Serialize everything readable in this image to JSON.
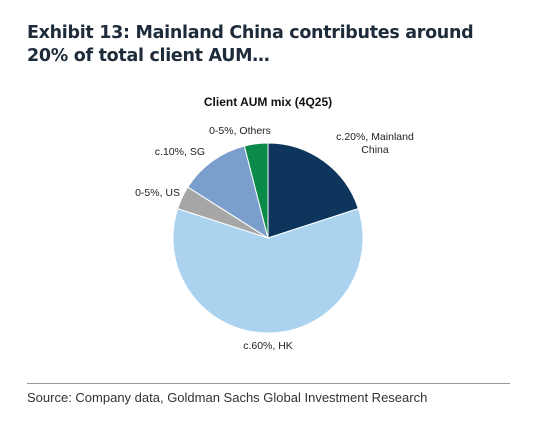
{
  "header": {
    "title": "Exhibit 13: Mainland China contributes around 20% of total client AUM…"
  },
  "chart_data": {
    "type": "pie",
    "title": "Client AUM mix (4Q25)",
    "categories": [
      "c.20%, Mainland China",
      "c.60%, HK",
      "0-5%, US",
      "c.10%, SG",
      "0-5%, Others"
    ],
    "values": [
      20,
      60,
      4,
      12,
      4
    ],
    "colors": [
      "#0e365c",
      "#abd3f0",
      "#a6a6a6",
      "#7b9fcd",
      "#0a8a48"
    ]
  },
  "footer": {
    "source": "Source: Company data, Goldman Sachs Global Investment Research"
  }
}
